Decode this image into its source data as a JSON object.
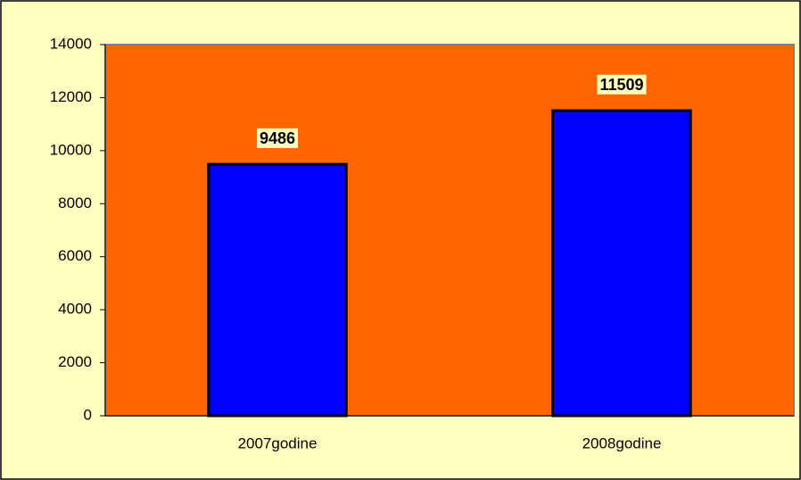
{
  "chart_data": {
    "type": "bar",
    "categories": [
      "2007godine",
      "2008godine"
    ],
    "values": [
      9486,
      11509
    ],
    "color": "#0000ff",
    "ylim": [
      0,
      14000
    ],
    "yticks": [
      0,
      2000,
      4000,
      6000,
      8000,
      10000,
      12000,
      14000
    ],
    "grid": false
  }
}
